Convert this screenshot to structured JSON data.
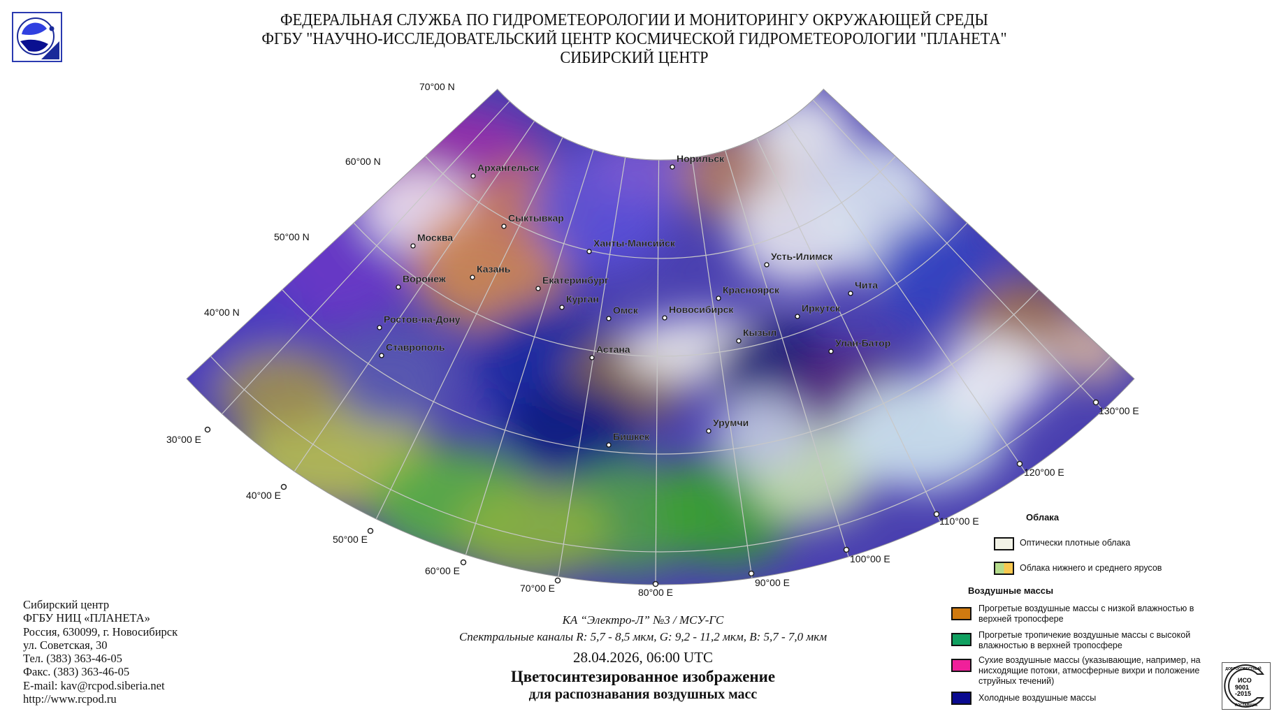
{
  "header": {
    "line1": "ФЕДЕРАЛЬНАЯ СЛУЖБА ПО ГИДРОМЕТЕОРОЛОГИИ И МОНИТОРИНГУ ОКРУЖАЮЩЕЙ СРЕДЫ",
    "line2": "ФГБУ \"НАУЧНО-ИССЛЕДОВАТЕЛЬСКИЙ ЦЕНТР КОСМИЧЕСКОЙ ГИДРОМЕТЕОРОЛОГИИ \"ПЛАНЕТА\"",
    "line3": "СИБИРСКИЙ ЦЕНТР"
  },
  "map": {
    "latitude_labels": [
      "70°00 N",
      "60°00 N",
      "50°00 N",
      "40°00 N"
    ],
    "longitude_labels": [
      "30°00 E",
      "40°00 E",
      "50°00 E",
      "60°00 E",
      "70°00 E",
      "80°00 E",
      "90°00 E",
      "100°00 E",
      "110°00 E",
      "120°00 E",
      "130°00 E"
    ],
    "cities": [
      "Архангельск",
      "Норильск",
      "Сыктывкар",
      "Москва",
      "Ханты-Мансийск",
      "Казань",
      "Воронеж",
      "Екатеринбург",
      "Усть-Илимск",
      "Красноярск",
      "Чита",
      "Курган",
      "Омск",
      "Новосибирск",
      "Иркутск",
      "Ростов-на-Дону",
      "Кызыл",
      "Улан-Батор",
      "Ставрополь",
      "Астана",
      "Урумчи",
      "Бишкек"
    ]
  },
  "address": [
    "Сибирский центр",
    "ФГБУ НИЦ «ПЛАНЕТА»",
    "Россия, 630099, г. Новосибирск",
    "ул. Советская, 30",
    "Тел. (383) 363-46-05",
    "Факс. (383) 363-46-05",
    "E-mail: kav@rcpod.siberia.net",
    "http://www.rcpod.ru"
  ],
  "caption": {
    "satellite": "КА “Электро-Л” №3 / МСУ-ГС",
    "channels": "Спектральные каналы R: 5,7 - 8,5 мкм, G: 9,2 - 11,2 мкм, B: 5,7 - 7,0 мкм",
    "datetime": "28.04.2026, 06:00 UTC",
    "title": "Цветосинтезированное изображение",
    "subtitle": "для распознавания воздушных масс"
  },
  "legend": {
    "clouds_title": "Облака",
    "clouds": [
      {
        "label": "Оптически плотные облака",
        "colors": [
          "#f2f2e6"
        ]
      },
      {
        "label": "Облака нижнего и среднего ярусов",
        "colors": [
          "#b5dc8c",
          "#f8c850"
        ]
      }
    ],
    "airmass_title": "Воздушные массы",
    "airmasses": [
      {
        "label": "Прогретые воздушные массы с низкой влажностью в верхней тропосфере",
        "color": "#d07a10"
      },
      {
        "label": "Прогретые тропичекие воздушные массы с высокой влажностью в верхней тропосфере",
        "color": "#10a060"
      },
      {
        "label": "Сухие воздушные массы (указывающие, например, на нисходящие потоки, атмосферные вихри и положение струйных течений)",
        "color": "#f0209a"
      },
      {
        "label": "Холодные воздушные массы",
        "color": "#0a0a90"
      }
    ]
  },
  "stamp": {
    "top": "ДОБРОСОВЕСТНЫЙ",
    "center": "ИСО 9001 -2015",
    "bottom": "ПОСТАВЩИК"
  },
  "colors": {
    "graticule": "#c8c8c8",
    "logo_blue": "#2a3ab0",
    "label": "#111111"
  }
}
